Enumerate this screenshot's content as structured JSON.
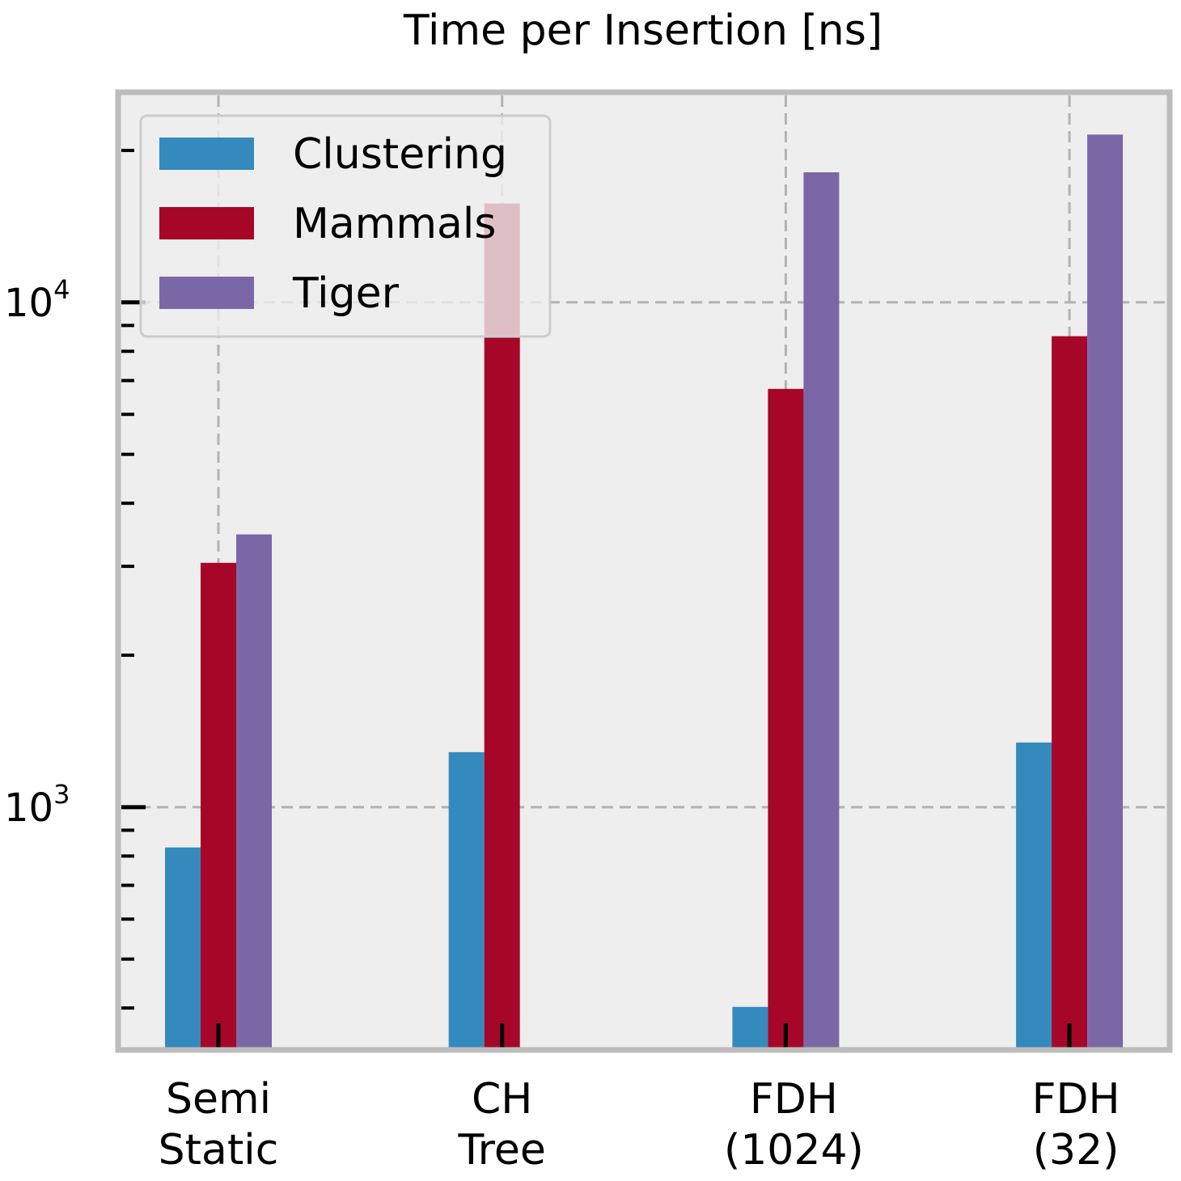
{
  "chart_data": {
    "type": "bar",
    "title": "Time per Insertion [ns]",
    "xlabel": "",
    "ylabel": "",
    "yscale": "log",
    "ylim": [
      334,
      25700
    ],
    "grid": true,
    "legend_position": "top-left",
    "categories": [
      {
        "lines": [
          "Semi",
          "Static"
        ]
      },
      {
        "lines": [
          "CH",
          "Tree"
        ]
      },
      {
        "lines": [
          "FDH",
          "(1024)"
        ]
      },
      {
        "lines": [
          "FDH",
          "(32)"
        ]
      }
    ],
    "category_labels": [
      "Semi Static",
      "CH Tree",
      "FDH (1024)",
      "FDH (32)"
    ],
    "yticks_major": [
      {
        "value": 1000,
        "base": "10",
        "exp": "3"
      },
      {
        "value": 10000,
        "base": "10",
        "exp": "4"
      }
    ],
    "yticks_minor": [
      400,
      500,
      600,
      700,
      800,
      900,
      2000,
      3000,
      4000,
      5000,
      6000,
      7000,
      8000,
      9000,
      20000
    ],
    "series": [
      {
        "name": "Clustering",
        "color": "#348ABD",
        "values": [
          832,
          1285,
          402,
          1343
        ]
      },
      {
        "name": "Mammals",
        "color": "#A60628",
        "values": [
          3048,
          15700,
          6740,
          8570
        ]
      },
      {
        "name": "Tiger",
        "color": "#7A68A6",
        "values": [
          3470,
          null,
          18100,
          21500
        ]
      }
    ]
  }
}
